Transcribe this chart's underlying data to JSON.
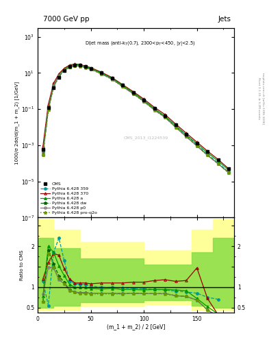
{
  "title_left": "7000 GeV pp",
  "title_right": "Jets",
  "annotation": "Dijet mass (anti-k$_{T}$(0.7), 2300<p$_{T}$<450, |y|<2.5)",
  "cms_watermark": "CMS_2013_I1224539",
  "xlabel": "(m_1 + m_2) / 2 [GeV]",
  "ylabel_main": "1000/σ 2dσ/d(m_1 + m_2) [1/GeV]",
  "ylabel_ratio": "Ratio to CMS",
  "xlim": [
    0,
    185
  ],
  "ylim_main": [
    1e-07,
    3000.0
  ],
  "ylim_ratio": [
    0.38,
    2.7
  ],
  "x_data": [
    5,
    10,
    15,
    20,
    25,
    30,
    35,
    40,
    45,
    50,
    60,
    70,
    80,
    90,
    100,
    110,
    120,
    130,
    140,
    150,
    160,
    170,
    180
  ],
  "cms_y": [
    0.0006,
    0.12,
    1.5,
    5.5,
    13,
    22,
    28,
    26,
    22,
    18,
    10,
    5.0,
    2.1,
    0.85,
    0.32,
    0.11,
    0.042,
    0.013,
    0.004,
    0.0013,
    0.00045,
    0.00016,
    5e-05
  ],
  "py359_y": [
    0.0005,
    0.12,
    2.0,
    7,
    14,
    21,
    26,
    25,
    21,
    17,
    9.5,
    4.8,
    1.9,
    0.76,
    0.285,
    0.097,
    0.038,
    0.011,
    0.0036,
    0.00105,
    0.00032,
    0.000105,
    3.3e-05
  ],
  "py370_y": [
    0.0009,
    0.18,
    2.7,
    9,
    18,
    27,
    31,
    29,
    24,
    19.5,
    11,
    5.6,
    2.25,
    0.93,
    0.36,
    0.125,
    0.05,
    0.015,
    0.0047,
    0.0015,
    0.00048,
    0.000165,
    5e-05
  ],
  "pya_y": [
    0.0004,
    0.1,
    1.9,
    7,
    16,
    24,
    28,
    27,
    23,
    18,
    10,
    5.1,
    2.05,
    0.83,
    0.31,
    0.105,
    0.041,
    0.0124,
    0.0038,
    0.00122,
    0.00039,
    0.000135,
    4.2e-05
  ],
  "pydw_y": [
    0.0003,
    0.09,
    1.7,
    6.2,
    14.5,
    21,
    25,
    24,
    20,
    16,
    9.0,
    4.5,
    1.78,
    0.71,
    0.265,
    0.09,
    0.035,
    0.0099,
    0.003,
    0.00092,
    0.00028,
    9.5e-05,
    3e-05
  ],
  "pyp0_y": [
    0.0004,
    0.12,
    2.0,
    7,
    14.5,
    21,
    25,
    24,
    20,
    16,
    9.0,
    4.5,
    1.78,
    0.71,
    0.265,
    0.09,
    0.035,
    0.0099,
    0.003,
    0.00092,
    0.00028,
    9.5e-05,
    3e-05
  ],
  "pyproq2o_y": [
    0.0003,
    0.09,
    1.65,
    6.0,
    14,
    20.5,
    24.5,
    23.5,
    19.5,
    15.5,
    8.7,
    4.4,
    1.73,
    0.69,
    0.258,
    0.088,
    0.034,
    0.0097,
    0.003,
    0.00092,
    0.00028,
    9.5e-05,
    3e-05
  ],
  "ratio_x": [
    5,
    10,
    15,
    20,
    25,
    30,
    35,
    40,
    45,
    50,
    60,
    70,
    80,
    90,
    100,
    110,
    120,
    130,
    140,
    150,
    160,
    170
  ],
  "ratio_py359": [
    1.15,
    0.55,
    1.85,
    2.2,
    1.65,
    1.15,
    1.08,
    1.07,
    1.06,
    1.03,
    0.99,
    0.99,
    0.98,
    0.97,
    0.96,
    0.94,
    0.93,
    0.9,
    0.88,
    0.85,
    0.75,
    0.7
  ],
  "ratio_py370": [
    1.2,
    1.6,
    1.82,
    1.78,
    1.45,
    1.2,
    1.1,
    1.1,
    1.1,
    1.08,
    1.1,
    1.1,
    1.1,
    1.12,
    1.12,
    1.16,
    1.18,
    1.14,
    1.16,
    1.47,
    0.72,
    0.32
  ],
  "ratio_pya": [
    0.78,
    2.0,
    1.85,
    1.52,
    1.28,
    1.07,
    0.99,
    0.99,
    0.99,
    0.97,
    0.95,
    0.97,
    0.94,
    0.94,
    0.93,
    0.94,
    0.94,
    0.93,
    0.91,
    0.72,
    0.52,
    0.34
  ],
  "ratio_pydw": [
    0.65,
    1.9,
    1.57,
    1.27,
    1.12,
    0.93,
    0.88,
    0.86,
    0.86,
    0.85,
    0.85,
    0.85,
    0.84,
    0.85,
    0.84,
    0.84,
    0.84,
    0.79,
    0.77,
    0.68,
    0.44,
    0.28
  ],
  "ratio_pyp0": [
    0.82,
    1.48,
    1.47,
    1.18,
    1.08,
    0.92,
    0.87,
    0.86,
    0.86,
    0.85,
    0.85,
    0.85,
    0.84,
    0.85,
    0.84,
    0.84,
    0.84,
    0.79,
    0.77,
    0.68,
    0.44,
    0.28
  ],
  "ratio_pyproq2o": [
    0.65,
    1.82,
    1.48,
    1.22,
    1.08,
    0.92,
    0.87,
    0.84,
    0.84,
    0.83,
    0.83,
    0.83,
    0.83,
    0.85,
    0.84,
    0.84,
    0.83,
    0.79,
    0.77,
    0.68,
    0.44,
    0.28
  ],
  "color_cms": "#000000",
  "color_py359": "#009999",
  "color_py370": "#990000",
  "color_pya": "#009900",
  "color_pydw": "#006600",
  "color_pyp0": "#777777",
  "color_pyproq2o": "#669900",
  "bg_color": "#ffffff",
  "band_yellow_steps_x": [
    0,
    5,
    5,
    15,
    15,
    40,
    40,
    100,
    100,
    145,
    145,
    165,
    165,
    185
  ],
  "band_yellow_top": [
    2.65,
    2.65,
    2.65,
    2.65,
    2.4,
    2.4,
    2.1,
    2.1,
    1.9,
    1.9,
    2.4,
    2.4,
    2.65,
    2.65
  ],
  "band_yellow_bot": [
    0.42,
    0.42,
    0.42,
    0.42,
    0.45,
    0.45,
    0.52,
    0.52,
    0.58,
    0.58,
    0.44,
    0.44,
    0.42,
    0.42
  ],
  "band_green_steps_x": [
    0,
    5,
    5,
    15,
    15,
    40,
    40,
    100,
    100,
    145,
    145,
    165,
    165,
    185
  ],
  "band_green_top": [
    2.2,
    2.2,
    2.2,
    2.2,
    1.95,
    1.95,
    1.7,
    1.7,
    1.55,
    1.55,
    1.85,
    1.85,
    2.2,
    2.2
  ],
  "band_green_bot": [
    0.5,
    0.5,
    0.5,
    0.5,
    0.55,
    0.55,
    0.62,
    0.62,
    0.67,
    0.67,
    0.55,
    0.55,
    0.5,
    0.5
  ]
}
